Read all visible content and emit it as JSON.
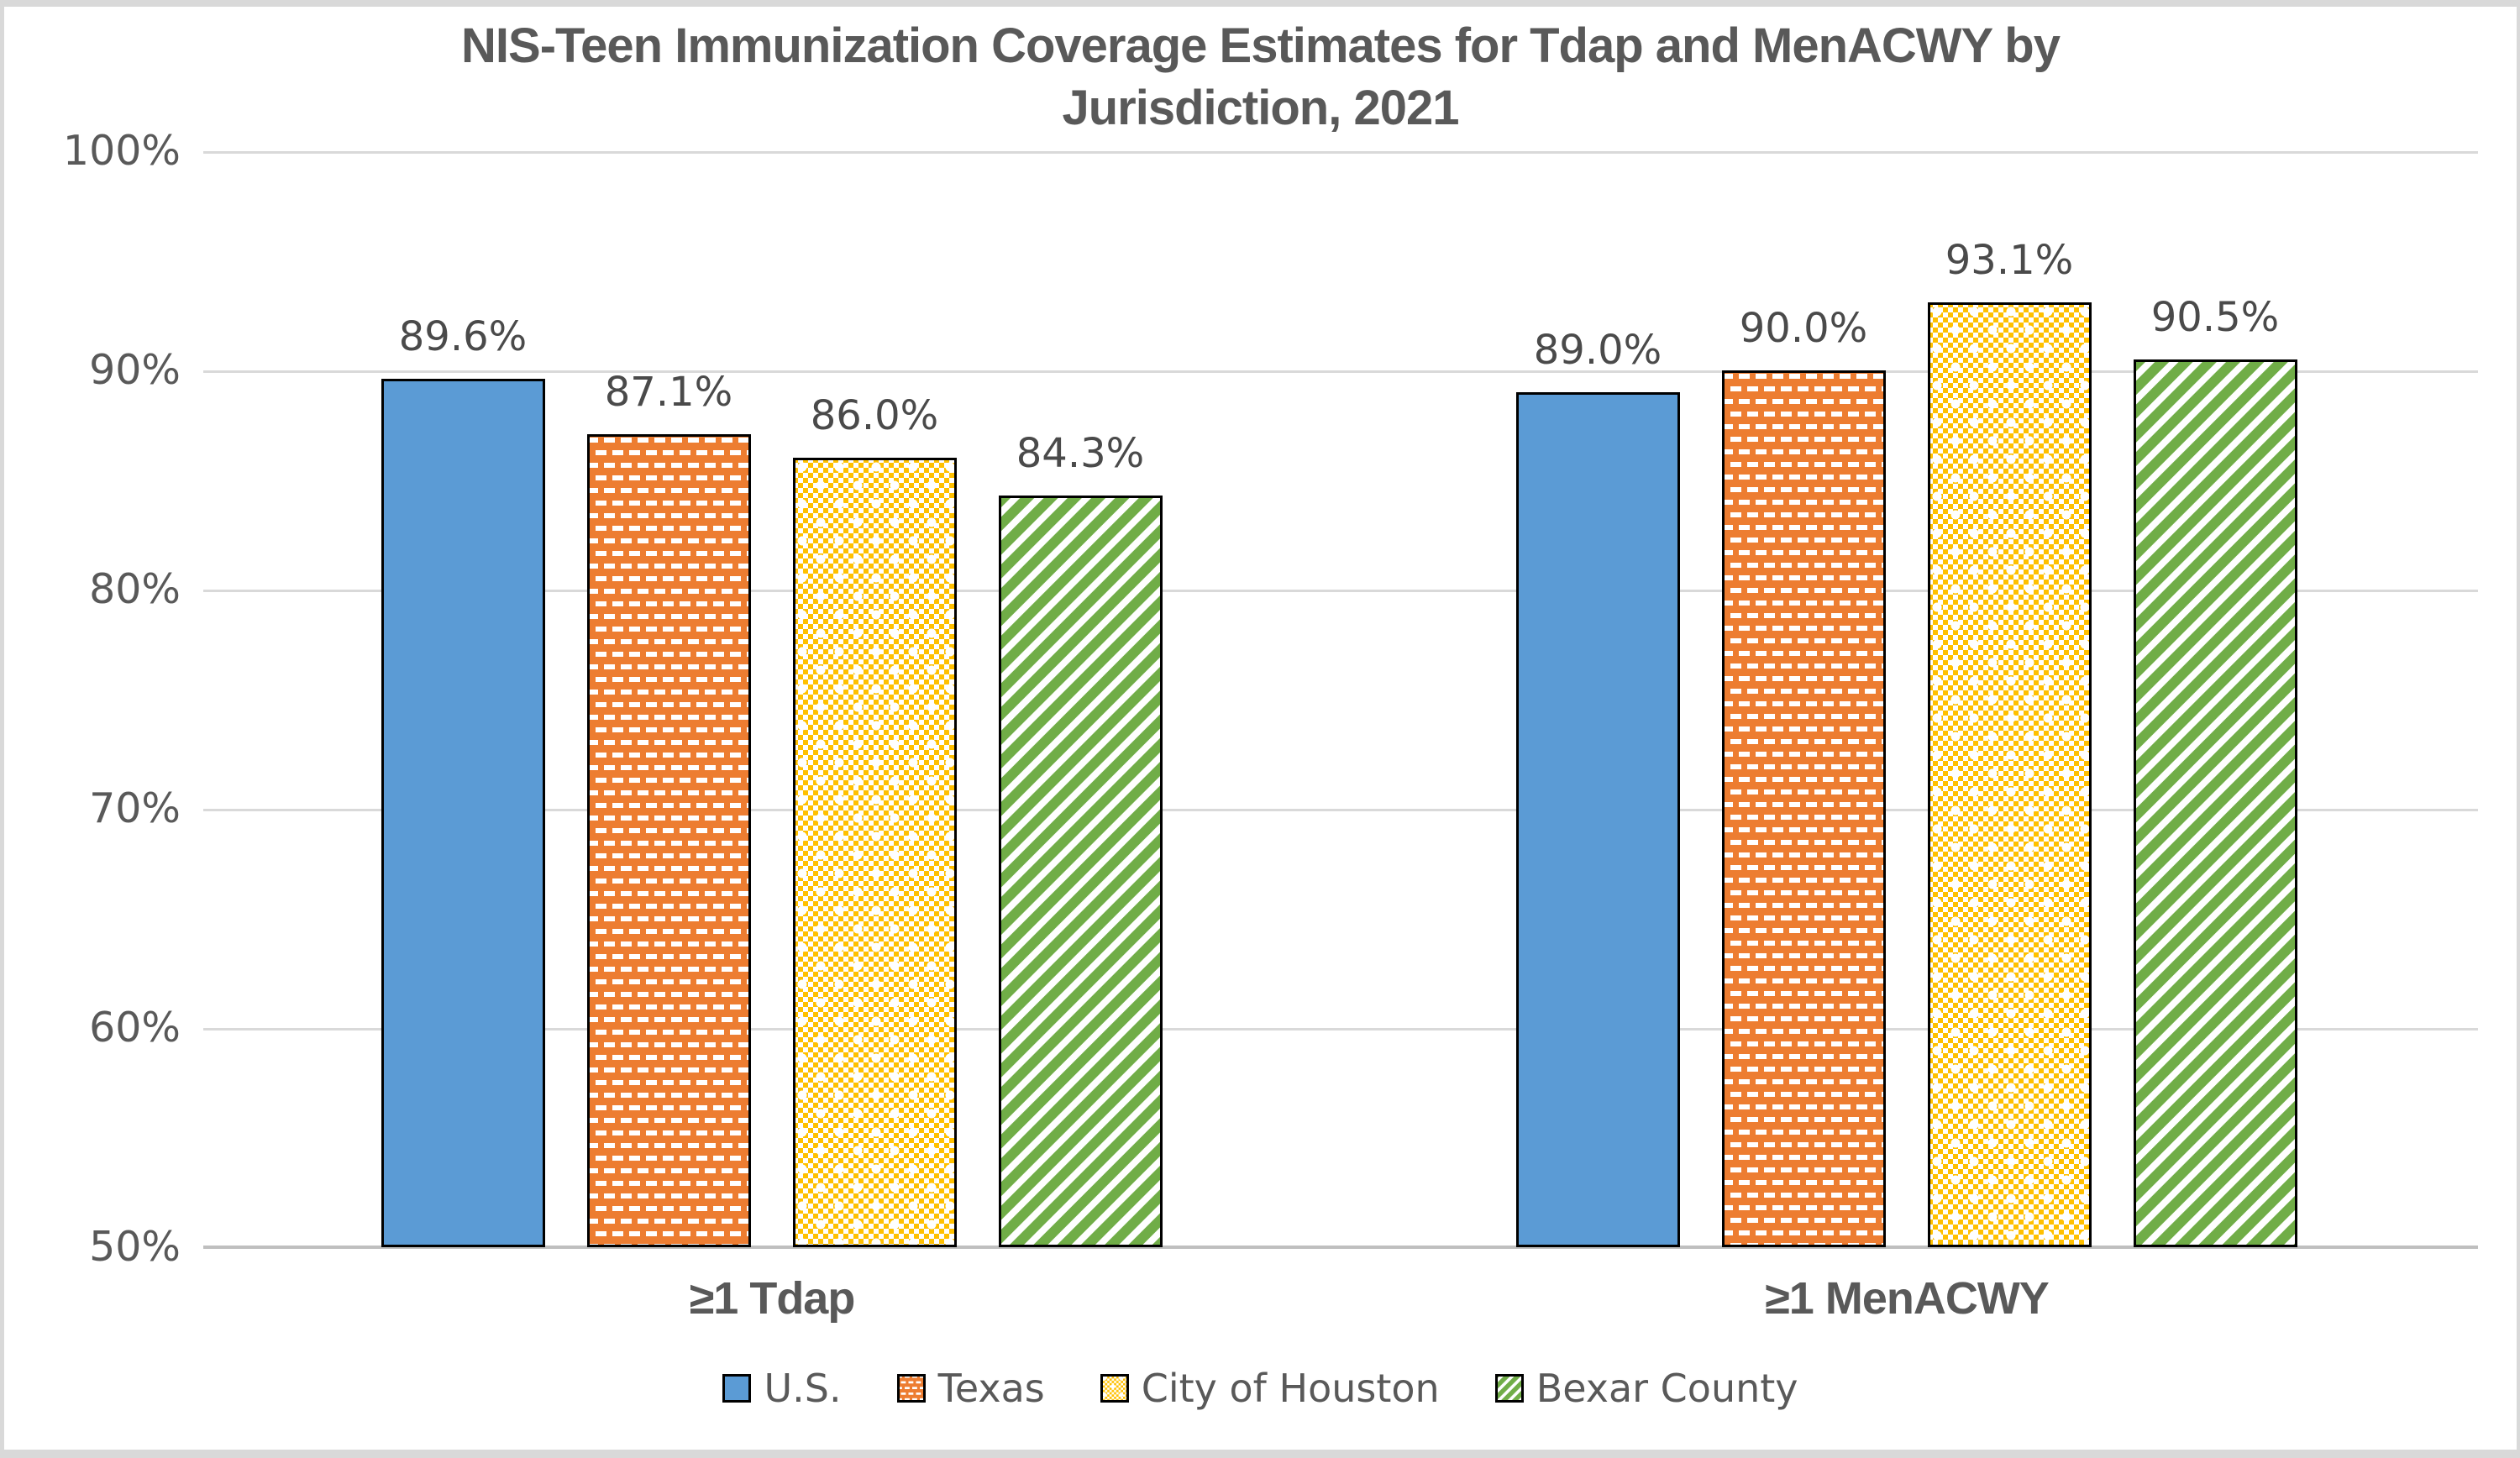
{
  "chart_data": {
    "type": "bar",
    "title": "NIS-Teen Immunization Coverage Estimates for Tdap and MenACWY by Jurisdiction, 2021",
    "title_lines": [
      "NIS-Teen Immunization Coverage Estimates for Tdap and MenACWY by",
      "Jurisdiction, 2021"
    ],
    "categories": [
      "≥1 Tdap",
      "≥1 MenACWY"
    ],
    "category_keys": [
      "tdap",
      "menacwy"
    ],
    "series": [
      {
        "name": "U.S.",
        "key": "us",
        "color": "#5B9BD5",
        "pattern": "solid",
        "values": [
          89.6,
          89.0
        ]
      },
      {
        "name": "Texas",
        "key": "texas",
        "color": "#ED7D31",
        "pattern": "dashed-brick",
        "values": [
          87.1,
          90.0
        ]
      },
      {
        "name": "City of Houston",
        "key": "city-of-houston",
        "color": "#FFC000",
        "pattern": "checker-dots",
        "values": [
          86.0,
          93.1
        ]
      },
      {
        "name": "Bexar County",
        "key": "bexar-county",
        "color": "#70AD47",
        "pattern": "diagonal-stripes",
        "values": [
          84.3,
          90.5
        ]
      }
    ],
    "labels": [
      [
        "89.6%",
        "87.1%",
        "86.0%",
        "84.3%"
      ],
      [
        "89.0%",
        "90.0%",
        "93.1%",
        "90.5%"
      ]
    ],
    "y_ticks": [
      "100%",
      "90%",
      "80%",
      "70%",
      "60%",
      "50%"
    ],
    "ylim": [
      50,
      100
    ],
    "grid": true,
    "legend_position": "bottom"
  },
  "colors": {
    "background": "#FFFFFF",
    "frame": "#D9D9D9",
    "gridline": "#D9D9D9",
    "axis_line": "#BFBFBF",
    "text": "#595959",
    "value_label": "#4A4A4A",
    "bar_outline": "#000000"
  }
}
